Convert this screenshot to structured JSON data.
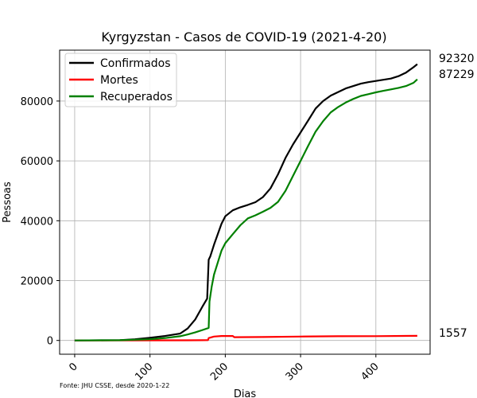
{
  "chart_data": {
    "type": "line",
    "title": "Kyrgyzstan - Casos de COVID-19 (2021-4-20)",
    "xlabel": "Dias",
    "ylabel": "Pessoas",
    "xlim": [
      -20,
      472
    ],
    "ylim": [
      -4600,
      97000
    ],
    "x_ticks": [
      0,
      100,
      200,
      300,
      400
    ],
    "y_ticks": [
      0,
      20000,
      40000,
      60000,
      80000
    ],
    "grid": true,
    "legend_position": "top-left",
    "source_note": "Fonte: JHU CSSE, desde 2020-1-22",
    "end_labels": [
      "92320",
      "87229",
      "1557"
    ],
    "series": [
      {
        "name": "Confirmados",
        "color": "#000000",
        "x": [
          0,
          60,
          80,
          100,
          120,
          140,
          150,
          160,
          170,
          176,
          178,
          180,
          185,
          190,
          195,
          200,
          210,
          220,
          230,
          240,
          250,
          260,
          270,
          280,
          290,
          300,
          310,
          320,
          330,
          340,
          350,
          360,
          370,
          380,
          390,
          400,
          410,
          420,
          430,
          440,
          450,
          455
        ],
        "y": [
          0,
          100,
          400,
          900,
          1500,
          2300,
          4000,
          7000,
          11500,
          14000,
          27000,
          28000,
          32000,
          35500,
          39000,
          41500,
          43500,
          44500,
          45300,
          46200,
          47900,
          50800,
          55500,
          61000,
          65500,
          69500,
          73500,
          77500,
          80000,
          81800,
          83000,
          84200,
          85000,
          85800,
          86300,
          86700,
          87100,
          87500,
          88300,
          89500,
          91300,
          92320
        ]
      },
      {
        "name": "Mortes",
        "color": "#ff0000",
        "x": [
          0,
          150,
          177,
          178,
          185,
          195,
          210,
          212,
          250,
          300,
          350,
          400,
          455
        ],
        "y": [
          0,
          50,
          100,
          800,
          1300,
          1500,
          1500,
          1100,
          1150,
          1300,
          1400,
          1450,
          1557
        ]
      },
      {
        "name": "Recuperados",
        "color": "#008000",
        "x": [
          0,
          60,
          100,
          120,
          140,
          150,
          160,
          170,
          178,
          179,
          182,
          185,
          190,
          195,
          200,
          210,
          220,
          230,
          240,
          250,
          260,
          270,
          280,
          290,
          300,
          310,
          320,
          330,
          340,
          350,
          360,
          370,
          380,
          390,
          400,
          410,
          420,
          430,
          440,
          450,
          455
        ],
        "y": [
          0,
          80,
          400,
          800,
          1400,
          2000,
          2700,
          3500,
          4200,
          13000,
          18000,
          22000,
          26000,
          30000,
          32500,
          35500,
          38500,
          40800,
          41800,
          43000,
          44300,
          46300,
          50000,
          55000,
          60000,
          65000,
          69800,
          73300,
          76200,
          78000,
          79500,
          80700,
          81700,
          82300,
          82900,
          83400,
          83900,
          84400,
          85000,
          86100,
          87229
        ]
      }
    ]
  }
}
